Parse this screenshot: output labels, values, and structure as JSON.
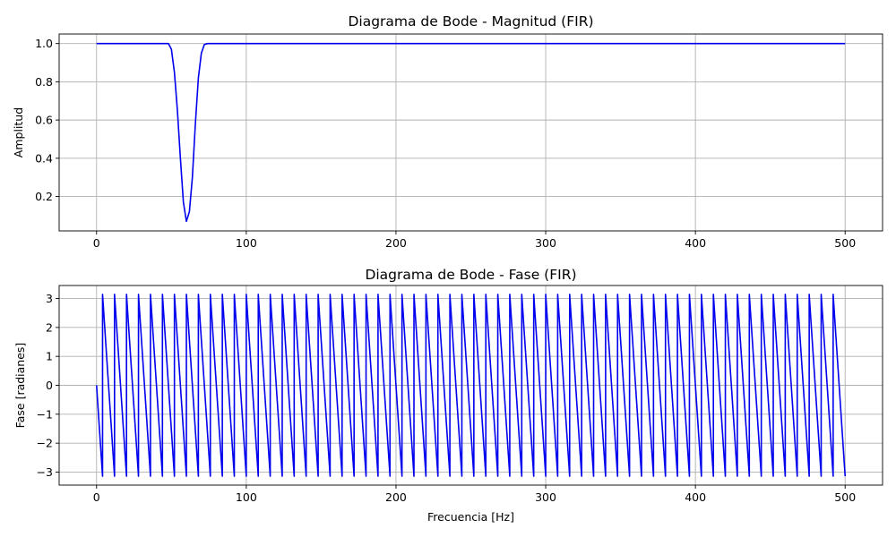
{
  "chart_data": [
    {
      "type": "line",
      "title": "Diagrama de Bode - Magnitud (FIR)",
      "xlabel": "",
      "ylabel": "Amplitud",
      "xlim": [
        -25,
        525
      ],
      "ylim": [
        0.02,
        1.05
      ],
      "xticks": [
        0,
        100,
        200,
        300,
        400,
        500
      ],
      "yticks": [
        0.2,
        0.4,
        0.6,
        0.8,
        1.0
      ],
      "ytick_labels": [
        "0.2",
        "0.4",
        "0.6",
        "0.8",
        "1.0"
      ],
      "grid": true,
      "color": "#0000ee",
      "series": [
        {
          "x": [
            0,
            10,
            20,
            30,
            40,
            45,
            48,
            50,
            52,
            54,
            56,
            58,
            60,
            62,
            64,
            66,
            68,
            70,
            72,
            74,
            78,
            85,
            100,
            150,
            200,
            300,
            400,
            500
          ],
          "values": [
            1.0,
            1.0,
            1.0,
            1.0,
            1.0,
            1.0,
            1.0,
            0.97,
            0.85,
            0.65,
            0.4,
            0.17,
            0.07,
            0.12,
            0.3,
            0.58,
            0.82,
            0.95,
            0.995,
            1.0,
            1.0,
            1.0,
            1.0,
            1.0,
            1.0,
            1.0,
            1.0,
            1.0
          ]
        }
      ]
    },
    {
      "type": "line",
      "title": "Diagrama de Bode - Fase (FIR)",
      "xlabel": "Frecuencia [Hz]",
      "ylabel": "Fase [radianes]",
      "xlim": [
        -25,
        525
      ],
      "ylim": [
        -3.45,
        3.45
      ],
      "xticks": [
        0,
        100,
        200,
        300,
        400,
        500
      ],
      "yticks": [
        -3,
        -2,
        -1,
        0,
        1,
        2,
        3
      ],
      "ytick_labels": [
        "−3",
        "−2",
        "−1",
        "0",
        "1",
        "2",
        "3"
      ],
      "grid": true,
      "color": "#0000ee",
      "series": [
        {
          "wrapped_phase": {
            "start_value": 0,
            "period_hz": 8,
            "first_wrap_hz": 4,
            "last_x": 500,
            "min": -3.1416,
            "max": 3.1416
          }
        }
      ]
    }
  ]
}
